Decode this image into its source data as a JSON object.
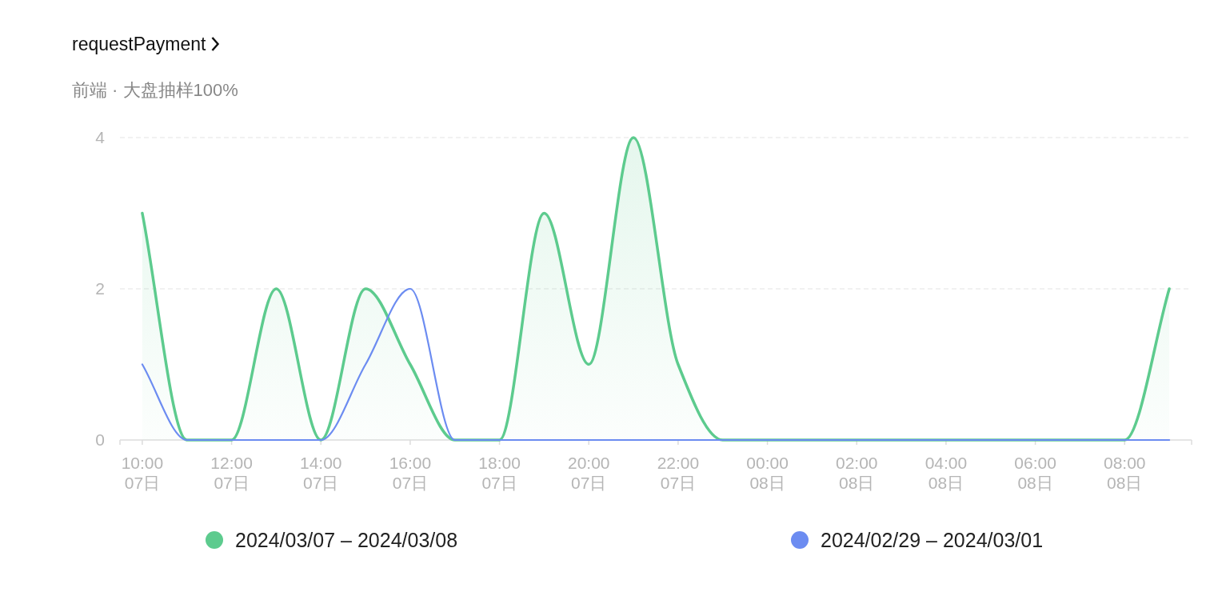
{
  "chart_data": {
    "type": "line",
    "title": "requestPayment",
    "subtitle": "前端 · 大盘抽样100%",
    "categories": [
      "10:00\n07日",
      null,
      "12:00\n07日",
      null,
      "14:00\n07日",
      null,
      "16:00\n07日",
      null,
      "18:00\n07日",
      null,
      "20:00\n07日",
      null,
      "22:00\n07日",
      null,
      "00:00\n08日",
      null,
      "02:00\n08日",
      null,
      "04:00\n08日",
      null,
      "06:00\n08日",
      null,
      "08:00\n08日",
      null
    ],
    "ylim": [
      0,
      4
    ],
    "yticks": [
      0,
      2,
      4
    ],
    "grid": "y",
    "legend": "bottom",
    "series": [
      {
        "name": "2024/03/07 – 2024/03/08",
        "type": "area",
        "color": "#5dcb8e",
        "values": [
          3,
          0,
          0,
          2,
          0,
          2,
          1,
          0,
          0,
          3,
          1,
          4,
          1,
          0,
          0,
          0,
          0,
          0,
          0,
          0,
          0,
          0,
          0,
          2
        ]
      },
      {
        "name": "2024/02/29 – 2024/03/01",
        "type": "line",
        "color": "#6c8cf1",
        "values": [
          1,
          0,
          0,
          0,
          0,
          1,
          2,
          0,
          0,
          0,
          0,
          0,
          0,
          0,
          0,
          0,
          0,
          0,
          0,
          0,
          0,
          0,
          0,
          0
        ]
      }
    ]
  }
}
